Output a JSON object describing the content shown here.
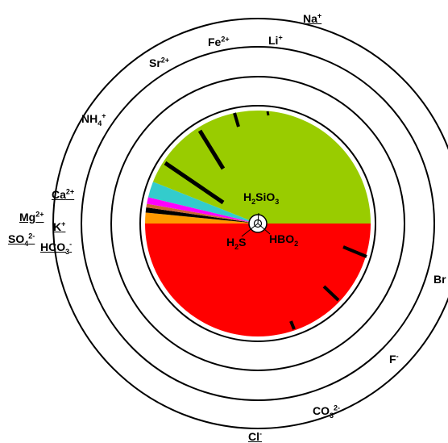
{
  "chart_data": {
    "type": "pie",
    "title": "",
    "slices": [
      {
        "name": "",
        "value": 180.0,
        "color": "#ff0000"
      },
      {
        "name": "",
        "value": 5.6,
        "color": "#ff9900"
      },
      {
        "name": "",
        "value": 2.6,
        "color": "#000000"
      },
      {
        "name": "",
        "value": 1.9,
        "color": "#cc6633"
      },
      {
        "name": "",
        "value": 3.4,
        "color": "#ff00ff"
      },
      {
        "name": "",
        "value": 8.2,
        "color": "#33cccc"
      },
      {
        "name": "",
        "value": 158.3,
        "color": "#99cc00"
      }
    ],
    "ions": [
      {
        "key": "na",
        "text": "Na",
        "charge": "+",
        "sub": "",
        "underline": true
      },
      {
        "key": "li",
        "text": "Li",
        "charge": "+",
        "sub": "",
        "underline": false
      },
      {
        "key": "fe",
        "text": "Fe",
        "charge": "2+",
        "sub": "",
        "underline": false
      },
      {
        "key": "sr",
        "text": "Sr",
        "charge": "2+",
        "sub": "",
        "underline": false
      },
      {
        "key": "nh4",
        "text": "NH",
        "charge": "+",
        "sub": "4",
        "underline": false
      },
      {
        "key": "ca",
        "text": "Ca",
        "charge": "2+",
        "sub": "",
        "underline": true
      },
      {
        "key": "mg",
        "text": "Mg",
        "charge": "2+",
        "sub": "",
        "underline": true
      },
      {
        "key": "k",
        "text": "K",
        "charge": "+",
        "sub": "",
        "underline": true
      },
      {
        "key": "so4",
        "text": "SO",
        "charge": "2-",
        "sub": "4",
        "underline": true
      },
      {
        "key": "hco3",
        "text": "HCO",
        "charge": "-",
        "sub": "3",
        "underline": true
      },
      {
        "key": "br",
        "text": "Br",
        "charge": "",
        "sub": "",
        "underline": false
      },
      {
        "key": "f",
        "text": "F",
        "charge": "-",
        "sub": "",
        "underline": false
      },
      {
        "key": "co3",
        "text": "CO",
        "charge": "2-",
        "sub": "3",
        "underline": false
      },
      {
        "key": "cl",
        "text": "Cl",
        "charge": "-",
        "sub": "",
        "underline": true
      }
    ],
    "center_labels": [
      {
        "key": "h2sio3",
        "html": "H<sub>2</sub>SiO<sub>3</sub>"
      },
      {
        "key": "h2s",
        "html": "H<sub>2</sub>S"
      },
      {
        "key": "hbo2",
        "html": "HBO<sub>2</sub>"
      }
    ]
  }
}
